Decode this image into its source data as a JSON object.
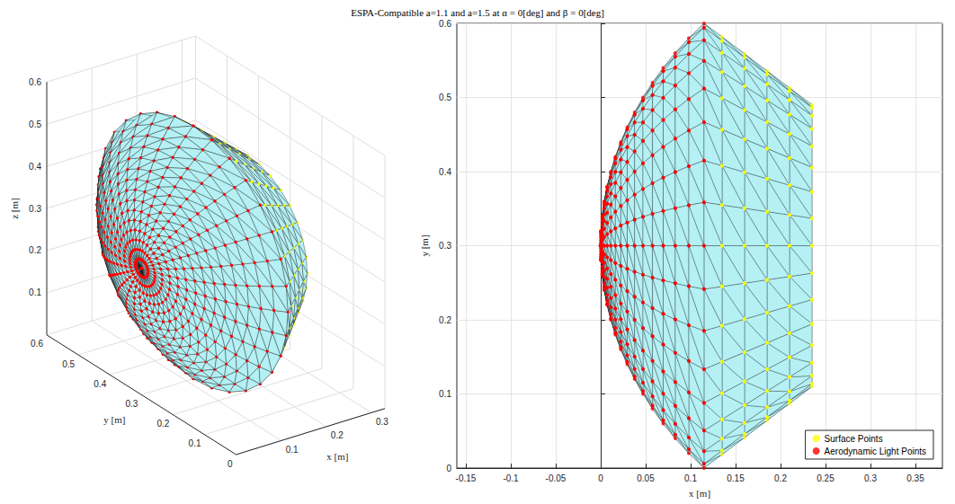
{
  "title": "ESPA-Compatible a=1.1 and a=1.5 at α = 0[deg] and β = 0[deg]",
  "chart_data": [
    {
      "type": "scatter3d",
      "xlabel": "x [m]",
      "ylabel": "y [m]",
      "zlabel": "z [m]",
      "xlim": [
        0,
        0.33
      ],
      "ylim": [
        0,
        0.6
      ],
      "zlim": [
        0,
        0.6
      ],
      "xticks": [
        0.1,
        0.2,
        0.3
      ],
      "yticks": [
        0,
        0.1,
        0.2,
        0.3,
        0.4,
        0.5,
        0.6
      ],
      "zticks": [
        0.1,
        0.2,
        0.3,
        0.4,
        0.5,
        0.6
      ],
      "grid": true,
      "axis_center": [
        0.3,
        0.3
      ],
      "points_per_ring": 32,
      "series": [
        {
          "color": "#ffff00",
          "rings": [
            [
              0.135,
              0.2817
            ],
            [
              0.16,
              0.2588
            ],
            [
              0.185,
              0.2358
            ],
            [
              0.21,
              0.2129
            ],
            [
              0.235,
              0.19
            ]
          ]
        },
        {
          "color": "#ff0000",
          "rings": [
            [
              0,
              0
            ],
            [
              0.0004,
              0.02
            ],
            [
              0.0018,
              0.04
            ],
            [
              0.004,
              0.06
            ],
            [
              0.0072,
              0.08
            ],
            [
              0.0113,
              0.1
            ],
            [
              0.0163,
              0.12
            ],
            [
              0.0224,
              0.14
            ],
            [
              0.0295,
              0.16
            ],
            [
              0.0377,
              0.18
            ],
            [
              0.047,
              0.2
            ],
            [
              0.0576,
              0.22
            ],
            [
              0.0695,
              0.24
            ],
            [
              0.0829,
              0.26
            ],
            [
              0.098,
              0.28
            ],
            [
              0.1149,
              0.3
            ]
          ]
        }
      ]
    },
    {
      "type": "scatter",
      "xlabel": "x [m]",
      "ylabel": "y [m]",
      "xlim": [
        -0.16,
        0.38
      ],
      "ylim": [
        0,
        0.6
      ],
      "xticks": [
        -0.15,
        -0.1,
        -0.05,
        0,
        0.05,
        0.1,
        0.15,
        0.2,
        0.25,
        0.3,
        0.35
      ],
      "yticks": [
        0,
        0.1,
        0.2,
        0.3,
        0.4,
        0.5,
        0.6
      ],
      "grid": true,
      "legend": "lower right",
      "axis_center": [
        0.3,
        0.3
      ],
      "points_per_ring": 32,
      "series": [
        {
          "name": "Surface Points",
          "color": "#ffff00",
          "rings": [
            [
              0.135,
              0.2817
            ],
            [
              0.16,
              0.2588
            ],
            [
              0.185,
              0.2358
            ],
            [
              0.21,
              0.2129
            ],
            [
              0.235,
              0.19
            ]
          ]
        },
        {
          "name": "Aerodynamic Light Points",
          "color": "#ff0000",
          "rings": [
            [
              0,
              0
            ],
            [
              0.0004,
              0.02
            ],
            [
              0.0018,
              0.04
            ],
            [
              0.004,
              0.06
            ],
            [
              0.0072,
              0.08
            ],
            [
              0.0113,
              0.1
            ],
            [
              0.0163,
              0.12
            ],
            [
              0.0224,
              0.14
            ],
            [
              0.0295,
              0.16
            ],
            [
              0.0377,
              0.18
            ],
            [
              0.047,
              0.2
            ],
            [
              0.0576,
              0.22
            ],
            [
              0.0695,
              0.24
            ],
            [
              0.0829,
              0.26
            ],
            [
              0.098,
              0.28
            ],
            [
              0.1149,
              0.3
            ]
          ]
        }
      ]
    }
  ]
}
